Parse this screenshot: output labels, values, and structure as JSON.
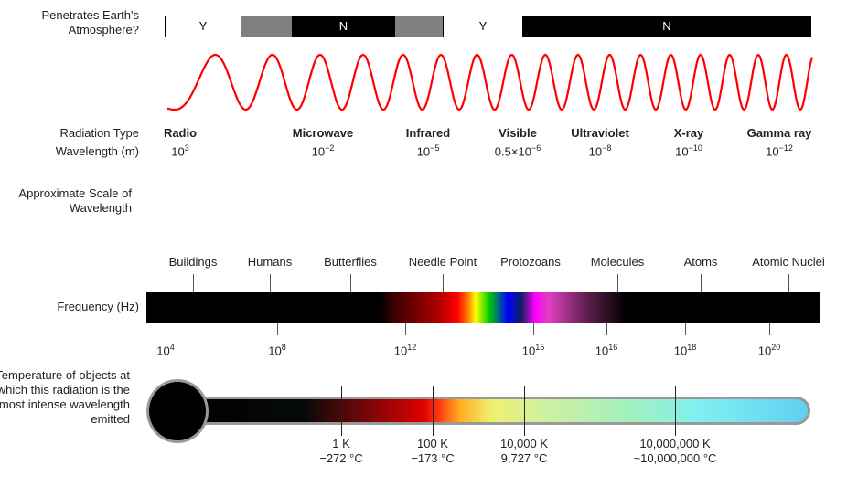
{
  "row_labels": {
    "atmosphere": "Penetrates Earth's Atmosphere?",
    "radiation_type": "Radiation Type",
    "wavelength": "Wavelength (m)",
    "scale": "Approximate Scale of Wavelength",
    "frequency": "Frequency (Hz)",
    "temperature": "Temperature of objects at which this radiation is the most intense wavelength emitted"
  },
  "atmosphere": [
    {
      "label": "Y",
      "color": "#ffffff"
    },
    {
      "label": "",
      "color": "#808080"
    },
    {
      "label": "N",
      "color": "#000000"
    },
    {
      "label": "",
      "color": "#808080"
    },
    {
      "label": "Y",
      "color": "#ffffff"
    },
    {
      "label": "N",
      "color": "#000000"
    }
  ],
  "wave_color": "#ff0000",
  "radiation": [
    {
      "name": "Radio",
      "wl_base": "10",
      "wl_exp": "3",
      "wl_prefix": ""
    },
    {
      "name": "Microwave",
      "wl_base": "10",
      "wl_exp": "−2",
      "wl_prefix": ""
    },
    {
      "name": "Infrared",
      "wl_base": "10",
      "wl_exp": "−5",
      "wl_prefix": ""
    },
    {
      "name": "Visible",
      "wl_base": "10",
      "wl_exp": "−6",
      "wl_prefix": "0.5×"
    },
    {
      "name": "Ultraviolet",
      "wl_base": "10",
      "wl_exp": "−8",
      "wl_prefix": ""
    },
    {
      "name": "X-ray",
      "wl_base": "10",
      "wl_exp": "−10",
      "wl_prefix": ""
    },
    {
      "name": "Gamma ray",
      "wl_base": "10",
      "wl_exp": "−12",
      "wl_prefix": ""
    }
  ],
  "scale_items": [
    {
      "label": "Buildings",
      "icon": "buildings-icon"
    },
    {
      "label": "Humans",
      "icon": "humans-icon"
    },
    {
      "label": "Butterflies",
      "icon": "butterfly-icon"
    },
    {
      "label": "Needle Point",
      "icon": "needle-icon"
    },
    {
      "label": "Protozoans",
      "icon": "protozoan-icon"
    },
    {
      "label": "Molecules",
      "icon": "molecule-icon"
    },
    {
      "label": "Atoms",
      "icon": "atom-icon"
    },
    {
      "label": "Atomic Nuclei",
      "icon": "nucleus-icon"
    }
  ],
  "frequency_ticks": [
    {
      "base": "10",
      "exp": "4"
    },
    {
      "base": "10",
      "exp": "8"
    },
    {
      "base": "10",
      "exp": "12"
    },
    {
      "base": "10",
      "exp": "15"
    },
    {
      "base": "10",
      "exp": "16"
    },
    {
      "base": "10",
      "exp": "18"
    },
    {
      "base": "10",
      "exp": "20"
    }
  ],
  "temperature_ticks": [
    {
      "k": "1 K",
      "c": "−272 °C"
    },
    {
      "k": "100 K",
      "c": "−173 °C"
    },
    {
      "k": "10,000 K",
      "c": "9,727 °C"
    },
    {
      "k": "10,000,000 K",
      "c": "~10,000,000 °C"
    }
  ]
}
